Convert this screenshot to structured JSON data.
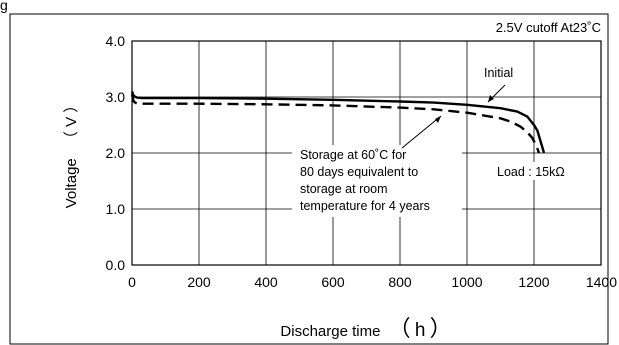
{
  "chart_data": {
    "type": "line",
    "header_fragment": "g",
    "condition": "2.5V cutoff At23˚C",
    "xlabel": "Discharge time",
    "xunit": "h",
    "ylabel": "Voltage",
    "yunit": "V",
    "xlim": [
      0,
      1400
    ],
    "ylim": [
      0.0,
      4.0
    ],
    "xticks": [
      "0",
      "200",
      "400",
      "600",
      "800",
      "1000",
      "1200",
      "1400"
    ],
    "yticks": [
      "0.0",
      "1.0",
      "2.0",
      "3.0",
      "4.0"
    ],
    "grid": true,
    "load_label": "Load : 15kΩ",
    "series": [
      {
        "name": "Initial",
        "style": "solid",
        "x": [
          0,
          5,
          15,
          30,
          60,
          100,
          200,
          400,
          600,
          800,
          900,
          1000,
          1100,
          1150,
          1180,
          1200,
          1210,
          1220,
          1225,
          1230
        ],
        "y": [
          3.1,
          3.02,
          2.99,
          2.98,
          2.98,
          2.98,
          2.98,
          2.97,
          2.95,
          2.92,
          2.9,
          2.86,
          2.8,
          2.74,
          2.65,
          2.5,
          2.4,
          2.2,
          2.1,
          2.0
        ]
      },
      {
        "name": "Storage at 60˚C for 80 days equivalent to storage at room temperature for 4 years",
        "style": "dashed",
        "x": [
          0,
          5,
          15,
          30,
          60,
          100,
          200,
          400,
          600,
          800,
          900,
          1000,
          1050,
          1100,
          1130,
          1160,
          1180,
          1195,
          1205,
          1212,
          1215
        ],
        "y": [
          3.05,
          2.92,
          2.88,
          2.88,
          2.88,
          2.88,
          2.88,
          2.87,
          2.85,
          2.81,
          2.78,
          2.72,
          2.67,
          2.62,
          2.56,
          2.47,
          2.37,
          2.27,
          2.15,
          2.05,
          2.0
        ]
      }
    ],
    "annotations": {
      "initial": "Initial",
      "storage_lines": [
        "Storage at 60˚C for",
        "80 days equivalent to",
        "storage at room",
        "temperature for 4 years"
      ]
    }
  }
}
